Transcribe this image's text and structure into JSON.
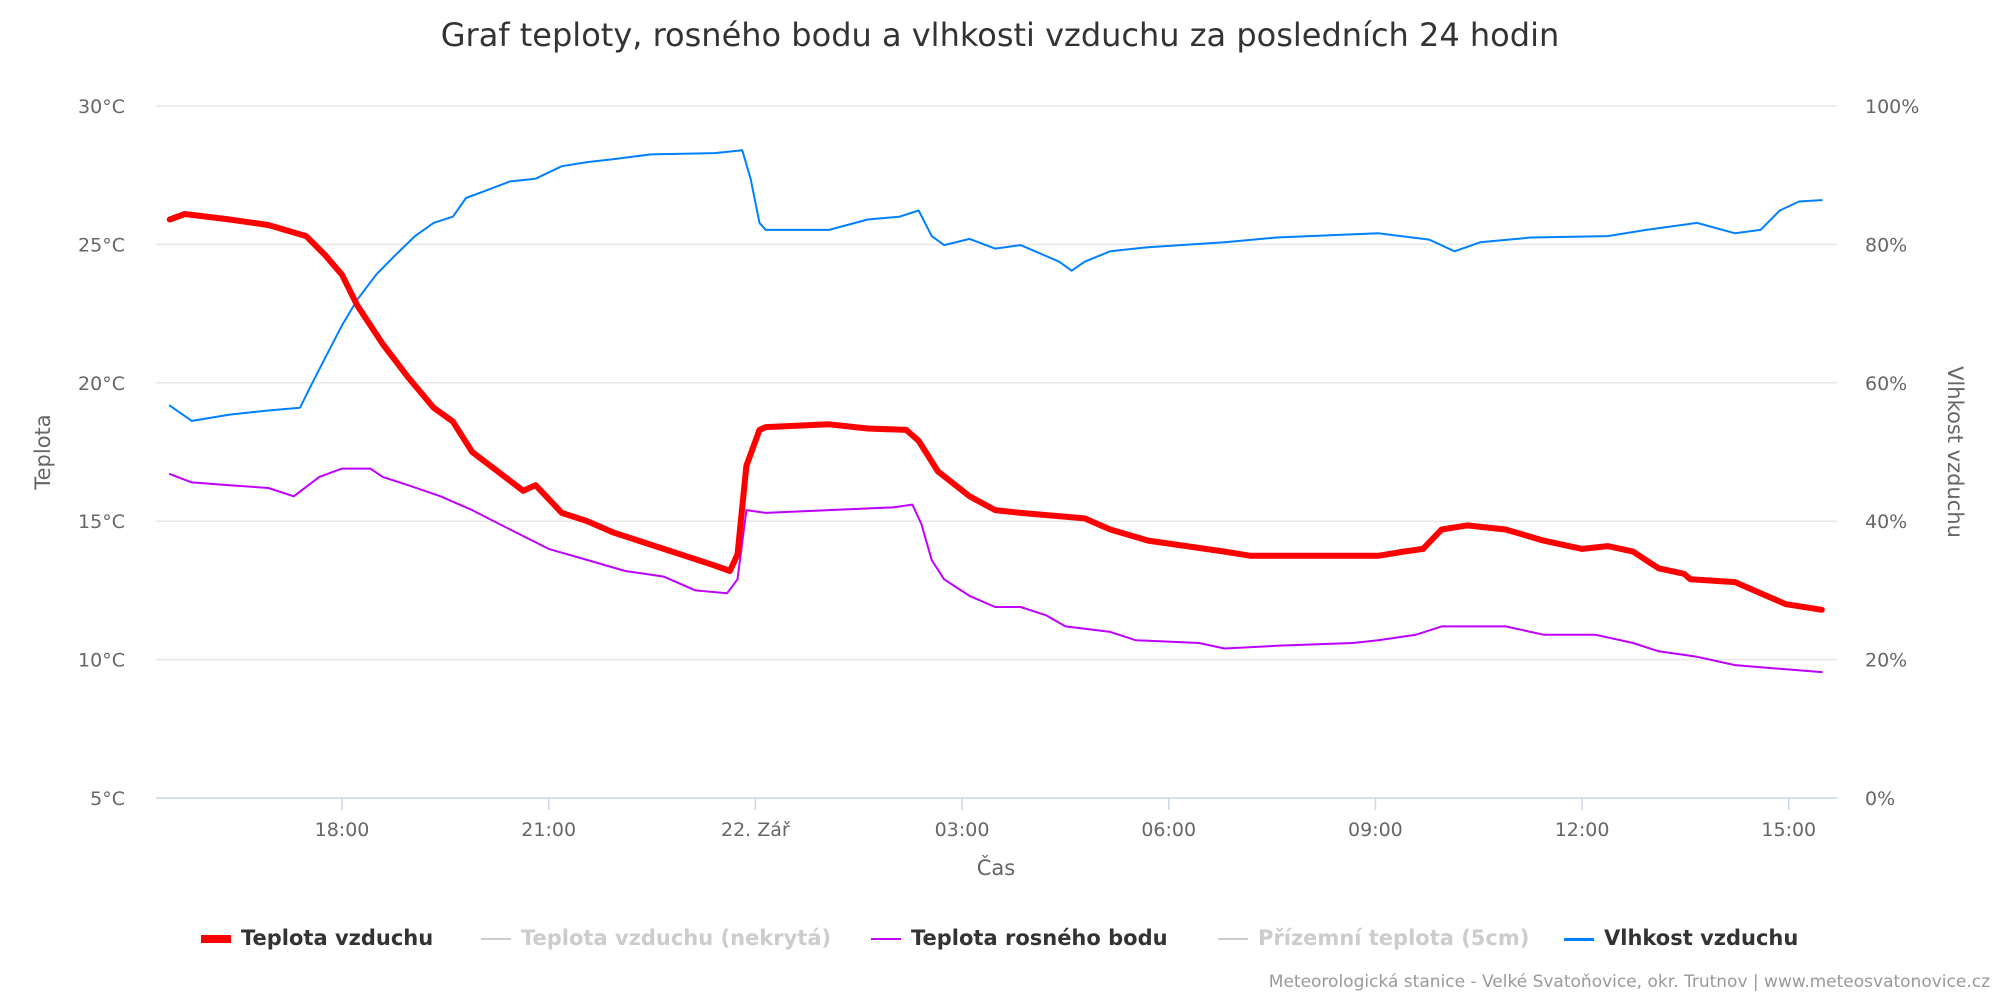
{
  "chart_data": {
    "type": "line",
    "title": "Graf teploty, rosného bodu a vlhkosti vzduchu za posledních 24 hodin",
    "xlabel": "Čas",
    "ylabel": "Teplota",
    "y2label": "Vlhkost vzduchu",
    "x_unit": "hours relative to 22. Zář 00:00",
    "xlim": [
      -8.7,
      15.7
    ],
    "ylim": [
      5,
      30
    ],
    "y2lim": [
      0,
      100
    ],
    "grid": true,
    "legend_placement": "bottom",
    "x_ticks": [
      {
        "value": -6,
        "label": "18:00"
      },
      {
        "value": -3,
        "label": "21:00"
      },
      {
        "value": 0,
        "label": "22. Zář"
      },
      {
        "value": 3,
        "label": "03:00"
      },
      {
        "value": 6,
        "label": "06:00"
      },
      {
        "value": 9,
        "label": "09:00"
      },
      {
        "value": 12,
        "label": "12:00"
      },
      {
        "value": 15,
        "label": "15:00"
      }
    ],
    "y_ticks": [
      {
        "value": 5,
        "label": "5°C"
      },
      {
        "value": 10,
        "label": "10°C"
      },
      {
        "value": 15,
        "label": "15°C"
      },
      {
        "value": 20,
        "label": "20°C"
      },
      {
        "value": 25,
        "label": "25°C"
      },
      {
        "value": 30,
        "label": "30°C"
      }
    ],
    "y2_ticks": [
      {
        "value": 0,
        "label": "0%"
      },
      {
        "value": 20,
        "label": "20%"
      },
      {
        "value": 40,
        "label": "40%"
      },
      {
        "value": 60,
        "label": "60%"
      },
      {
        "value": 80,
        "label": "80%"
      },
      {
        "value": 100,
        "label": "100%"
      }
    ],
    "series": [
      {
        "name": "Teplota vzduchu",
        "axis": "y",
        "color": "#ff0000",
        "visible": true,
        "x": [
          -8.5,
          -8.28,
          -7.63,
          -7.07,
          -6.52,
          -6.24,
          -6.0,
          -5.78,
          -5.41,
          -5.04,
          -4.67,
          -4.39,
          -4.11,
          -3.74,
          -3.37,
          -3.19,
          -2.81,
          -2.44,
          -2.07,
          -1.7,
          -1.33,
          -0.96,
          -0.59,
          -0.37,
          -0.26,
          -0.13,
          0.06,
          0.15,
          1.07,
          1.63,
          2.19,
          2.37,
          2.65,
          3.11,
          3.48,
          3.85,
          4.78,
          5.15,
          5.7,
          6.26,
          6.81,
          7.19,
          9.04,
          9.41,
          9.69,
          9.96,
          10.33,
          10.89,
          11.44,
          12.0,
          12.37,
          12.74,
          13.11,
          13.48,
          13.57,
          14.22,
          14.59,
          14.96,
          15.48
        ],
        "values": [
          25.9,
          26.1,
          25.9,
          25.7,
          25.3,
          24.6,
          23.9,
          22.8,
          21.4,
          20.2,
          19.1,
          18.6,
          17.5,
          16.8,
          16.1,
          16.3,
          15.3,
          15.0,
          14.6,
          14.3,
          14.0,
          13.7,
          13.4,
          13.2,
          13.8,
          17.0,
          18.3,
          18.4,
          18.5,
          18.35,
          18.3,
          17.9,
          16.8,
          15.9,
          15.4,
          15.3,
          15.1,
          14.7,
          14.3,
          14.1,
          13.9,
          13.75,
          13.75,
          13.9,
          14.0,
          14.7,
          14.85,
          14.7,
          14.3,
          14.0,
          14.1,
          13.9,
          13.3,
          13.1,
          12.9,
          12.8,
          12.4,
          12.0,
          11.8
        ]
      },
      {
        "name": "Teplota vzduchu (nekrytá)",
        "axis": "y",
        "color": "#cccccc",
        "visible": false,
        "x": [],
        "values": []
      },
      {
        "name": "Teplota rosného bodu",
        "axis": "y",
        "color": "#bf00ff",
        "visible": true,
        "x": [
          -8.5,
          -8.18,
          -7.63,
          -7.07,
          -6.7,
          -6.33,
          -6.0,
          -5.59,
          -5.41,
          -5.04,
          -4.57,
          -4.11,
          -3.56,
          -3.0,
          -2.44,
          -1.89,
          -1.33,
          -0.87,
          -0.41,
          -0.26,
          -0.13,
          0.15,
          1.07,
          2.0,
          2.28,
          2.41,
          2.56,
          2.74,
          3.11,
          3.48,
          3.85,
          4.22,
          4.5,
          5.15,
          5.52,
          6.44,
          6.81,
          7.56,
          8.67,
          9.04,
          9.59,
          9.96,
          10.89,
          11.44,
          12.19,
          12.74,
          13.11,
          13.67,
          14.22,
          14.96,
          15.48
        ],
        "values": [
          16.7,
          16.4,
          16.3,
          16.2,
          15.9,
          16.6,
          16.9,
          16.9,
          16.6,
          16.3,
          15.9,
          15.4,
          14.7,
          14.0,
          13.6,
          13.2,
          13.0,
          12.5,
          12.4,
          12.9,
          15.4,
          15.3,
          15.4,
          15.5,
          15.6,
          14.9,
          13.6,
          12.9,
          12.3,
          11.9,
          11.9,
          11.6,
          11.2,
          11.0,
          10.7,
          10.6,
          10.4,
          10.5,
          10.6,
          10.7,
          10.9,
          11.2,
          11.2,
          10.9,
          10.9,
          10.6,
          10.3,
          10.1,
          9.8,
          9.65,
          9.55
        ]
      },
      {
        "name": "Přízemní teplota (5cm)",
        "axis": "y",
        "color": "#cccccc",
        "visible": false,
        "x": [],
        "values": []
      },
      {
        "name": "Vlhkost vzduchu",
        "axis": "y2",
        "color": "#0080ff",
        "visible": true,
        "x": [
          -8.5,
          -8.18,
          -7.63,
          -7.07,
          -6.61,
          -6.43,
          -6.24,
          -6.0,
          -5.78,
          -5.5,
          -5.22,
          -4.94,
          -4.67,
          -4.39,
          -4.2,
          -3.93,
          -3.56,
          -3.19,
          -2.81,
          -2.44,
          -2.07,
          -1.52,
          -0.59,
          -0.19,
          -0.07,
          0.06,
          0.15,
          1.07,
          1.63,
          2.09,
          2.37,
          2.56,
          2.74,
          3.11,
          3.48,
          3.85,
          4.41,
          4.59,
          4.78,
          5.15,
          5.7,
          6.81,
          7.56,
          9.04,
          9.78,
          10.15,
          10.52,
          11.26,
          12.37,
          12.93,
          13.67,
          14.22,
          14.59,
          14.87,
          15.15,
          15.48
        ],
        "values": [
          56.7,
          54.5,
          55.4,
          56.0,
          56.4,
          60.0,
          63.7,
          68.3,
          72.0,
          75.7,
          78.5,
          81.2,
          83.1,
          84.0,
          86.7,
          87.7,
          89.1,
          89.5,
          91.3,
          91.9,
          92.3,
          93.0,
          93.2,
          93.6,
          89.5,
          83.1,
          82.1,
          82.1,
          83.6,
          84.0,
          84.9,
          81.2,
          79.9,
          80.8,
          79.4,
          79.9,
          77.5,
          76.2,
          77.5,
          79.0,
          79.6,
          80.3,
          81.0,
          81.6,
          80.7,
          79.0,
          80.3,
          81.0,
          81.2,
          82.1,
          83.1,
          81.6,
          82.1,
          84.9,
          86.2,
          86.4
        ]
      }
    ]
  },
  "footer": "Meteorologická stanice - Velké Svatoňovice, okr. Trutnov | www.meteosvatonovice.cz"
}
